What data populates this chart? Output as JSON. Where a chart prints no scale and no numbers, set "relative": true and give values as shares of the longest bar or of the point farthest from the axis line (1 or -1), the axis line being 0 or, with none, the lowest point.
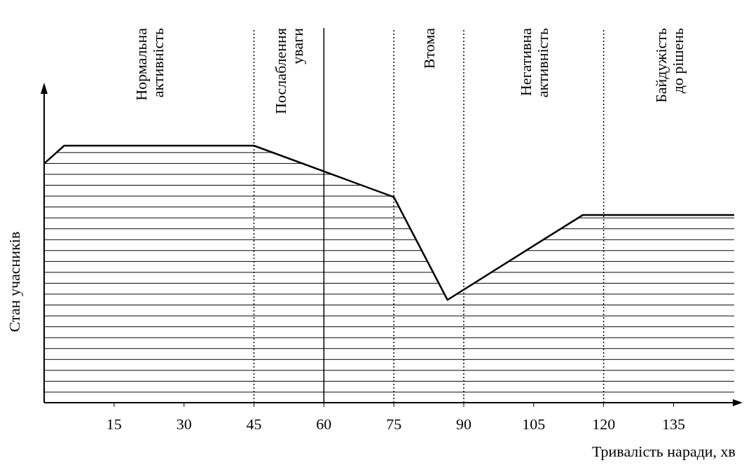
{
  "chart_data": {
    "type": "area",
    "relative": true,
    "xlabel": "Тривалість наради, хв",
    "ylabel": "Стан учасників",
    "xlim": [
      0,
      148
    ],
    "xticks": [
      15,
      30,
      45,
      60,
      75,
      90,
      105,
      120,
      135
    ],
    "series": [
      {
        "color": "#000000",
        "x": [
          0,
          4.3,
          45,
          75,
          86.5,
          115.5,
          148
        ],
        "values": [
          0.93,
          1,
          1,
          0.8,
          0.4,
          0.73,
          0.73
        ]
      }
    ],
    "ref_lines": [
      {
        "axis": "x",
        "value": 45,
        "line_style": "dotted"
      },
      {
        "axis": "x",
        "value": 60,
        "line_style": "solid"
      },
      {
        "axis": "x",
        "value": 75,
        "line_style": "dotted"
      },
      {
        "axis": "x",
        "value": 90,
        "line_style": "dotted"
      },
      {
        "axis": "x",
        "value": 120,
        "line_style": "dotted"
      }
    ],
    "annotations": [
      "Нормальна активність",
      "Послаблення уваги",
      "Втома",
      "Негативна активність",
      "Байдужість до рішень"
    ]
  }
}
